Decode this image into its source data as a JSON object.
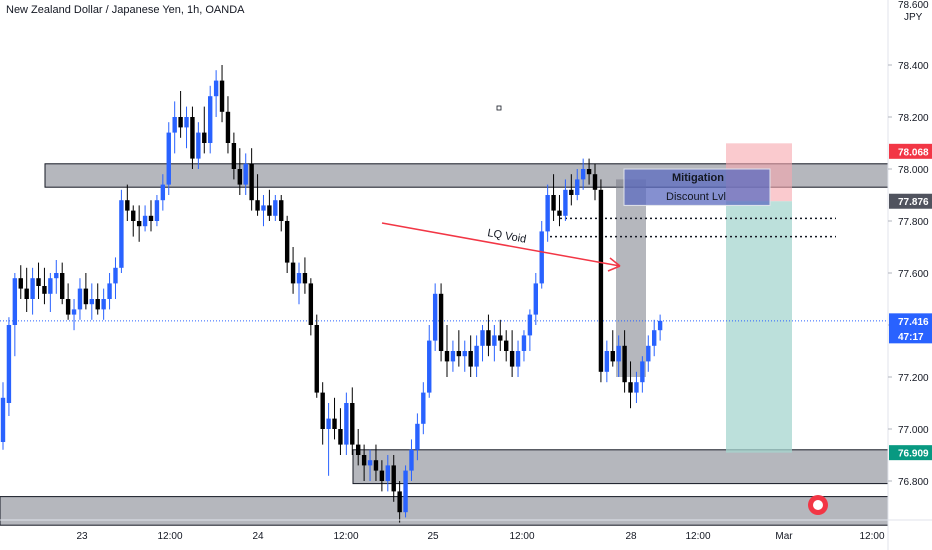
{
  "header": {
    "title": "New Zealand Dollar / Japanese Yen, 1h, OANDA"
  },
  "price_axis": {
    "currency": "JPY",
    "top_label": "78.600"
  },
  "watermark_icon": "tradingview-logo-icon",
  "colors": {
    "bull": "#2962ff",
    "bear": "#000000",
    "zone": "#787b86",
    "arrow": "#f23645",
    "stop": "#f7a6ae",
    "target": "#a5d6cf",
    "price_tag_blue": "#2962ff",
    "price_tag_red": "#f23645",
    "price_tag_green": "#089981",
    "price_tag_dark": "#50535e"
  },
  "annotations": {
    "lq_void": "LQ Void",
    "mitigation": "Mitigation",
    "discount": "Discount Lvl"
  },
  "price_tags": {
    "stop": "78.068",
    "entry": "77.876",
    "last": "77.416",
    "countdown": "47:17",
    "target": "76.909"
  },
  "chart_data": {
    "type": "candlestick",
    "title": "New Zealand Dollar / Japanese Yen, 1h, OANDA",
    "ylabel": "JPY",
    "ylim": [
      76.65,
      78.65
    ],
    "y_ticks": [
      "78.400",
      "78.200",
      "78.000",
      "77.800",
      "77.600",
      "77.400",
      "77.200",
      "77.000",
      "76.800"
    ],
    "x_ticks": [
      "23",
      "12:00",
      "24",
      "12:00",
      "25",
      "12:00",
      "28",
      "12:00",
      "Mar",
      "12:00"
    ],
    "grid": false,
    "zones": [
      {
        "y1": 78.02,
        "y2": 77.93
      },
      {
        "y1": 76.92,
        "y2": 76.79
      },
      {
        "y1": 76.74,
        "y2": 76.63
      }
    ],
    "position": {
      "type": "short",
      "stop": 78.068,
      "entry": 77.876,
      "target": 76.909
    },
    "last_price": 77.416,
    "candles": [
      [
        76.95,
        77.18,
        76.92,
        77.12
      ],
      [
        77.1,
        77.43,
        77.05,
        77.4
      ],
      [
        77.4,
        77.6,
        77.28,
        77.58
      ],
      [
        77.58,
        77.63,
        77.5,
        77.54
      ],
      [
        77.54,
        77.62,
        77.45,
        77.5
      ],
      [
        77.5,
        77.62,
        77.44,
        77.58
      ],
      [
        77.58,
        77.64,
        77.5,
        77.55
      ],
      [
        77.55,
        77.62,
        77.48,
        77.52
      ],
      [
        77.52,
        77.6,
        77.45,
        77.58
      ],
      [
        77.58,
        77.65,
        77.52,
        77.6
      ],
      [
        77.6,
        77.64,
        77.48,
        77.5
      ],
      [
        77.5,
        77.56,
        77.42,
        77.44
      ],
      [
        77.44,
        77.5,
        77.38,
        77.46
      ],
      [
        77.46,
        77.58,
        77.42,
        77.54
      ],
      [
        77.54,
        77.6,
        77.46,
        77.48
      ],
      [
        77.48,
        77.56,
        77.42,
        77.5
      ],
      [
        77.5,
        77.56,
        77.44,
        77.46
      ],
      [
        77.46,
        77.54,
        77.42,
        77.5
      ],
      [
        77.5,
        77.6,
        77.46,
        77.56
      ],
      [
        77.56,
        77.66,
        77.5,
        77.62
      ],
      [
        77.62,
        77.92,
        77.6,
        77.88
      ],
      [
        77.88,
        77.94,
        77.8,
        77.84
      ],
      [
        77.84,
        77.86,
        77.74,
        77.8
      ],
      [
        77.8,
        77.86,
        77.72,
        77.78
      ],
      [
        77.78,
        77.86,
        77.76,
        77.82
      ],
      [
        77.82,
        77.88,
        77.76,
        77.8
      ],
      [
        77.8,
        77.9,
        77.78,
        77.88
      ],
      [
        77.88,
        77.98,
        77.84,
        77.94
      ],
      [
        77.94,
        78.18,
        77.9,
        78.14
      ],
      [
        78.14,
        78.26,
        78.06,
        78.2
      ],
      [
        78.2,
        78.3,
        78.12,
        78.16
      ],
      [
        78.16,
        78.24,
        78.08,
        78.2
      ],
      [
        78.2,
        78.24,
        78.0,
        78.04
      ],
      [
        78.04,
        78.18,
        78.0,
        78.14
      ],
      [
        78.14,
        78.24,
        78.06,
        78.1
      ],
      [
        78.1,
        78.32,
        78.06,
        78.28
      ],
      [
        78.28,
        78.38,
        78.2,
        78.34
      ],
      [
        78.34,
        78.4,
        78.18,
        78.22
      ],
      [
        78.22,
        78.28,
        78.06,
        78.1
      ],
      [
        78.1,
        78.14,
        77.96,
        78.0
      ],
      [
        78.0,
        78.08,
        77.9,
        77.94
      ],
      [
        77.94,
        78.06,
        77.9,
        78.02
      ],
      [
        78.02,
        78.08,
        77.84,
        77.88
      ],
      [
        77.88,
        77.98,
        77.82,
        77.84
      ],
      [
        77.84,
        77.9,
        77.78,
        77.86
      ],
      [
        77.86,
        77.92,
        77.8,
        77.82
      ],
      [
        77.82,
        77.9,
        77.8,
        77.88
      ],
      [
        77.88,
        77.9,
        77.76,
        77.8
      ],
      [
        77.8,
        77.82,
        77.6,
        77.64
      ],
      [
        77.64,
        77.7,
        77.52,
        77.56
      ],
      [
        77.56,
        77.64,
        77.48,
        77.6
      ],
      [
        77.6,
        77.66,
        77.52,
        77.56
      ],
      [
        77.56,
        77.58,
        77.36,
        77.4
      ],
      [
        77.4,
        77.44,
        77.12,
        77.14
      ],
      [
        77.14,
        77.18,
        76.94,
        77.0
      ],
      [
        77.0,
        77.1,
        76.82,
        77.04
      ],
      [
        77.04,
        77.12,
        76.96,
        77.0
      ],
      [
        77.0,
        77.08,
        76.9,
        76.94
      ],
      [
        76.94,
        77.14,
        76.9,
        77.1
      ],
      [
        77.1,
        77.16,
        76.9,
        76.94
      ],
      [
        76.94,
        77.0,
        76.86,
        76.9
      ],
      [
        76.9,
        76.94,
        76.8,
        76.86
      ],
      [
        76.86,
        76.92,
        76.8,
        76.88
      ],
      [
        76.88,
        76.94,
        76.8,
        76.84
      ],
      [
        76.84,
        76.88,
        76.76,
        76.8
      ],
      [
        76.8,
        76.9,
        76.76,
        76.86
      ],
      [
        76.86,
        76.9,
        76.72,
        76.76
      ],
      [
        76.76,
        76.8,
        76.64,
        76.68
      ],
      [
        76.68,
        76.86,
        76.66,
        76.84
      ],
      [
        76.84,
        76.96,
        76.8,
        76.92
      ],
      [
        76.92,
        77.06,
        76.88,
        77.02
      ],
      [
        77.02,
        77.18,
        76.98,
        77.14
      ],
      [
        77.14,
        77.4,
        77.12,
        77.34
      ],
      [
        77.34,
        77.56,
        77.3,
        77.52
      ],
      [
        77.52,
        77.56,
        77.26,
        77.3
      ],
      [
        77.3,
        77.4,
        77.2,
        77.26
      ],
      [
        77.26,
        77.34,
        77.22,
        77.3
      ],
      [
        77.3,
        77.38,
        77.24,
        77.28
      ],
      [
        77.28,
        77.34,
        77.22,
        77.3
      ],
      [
        77.3,
        77.36,
        77.2,
        77.24
      ],
      [
        77.24,
        77.36,
        77.2,
        77.32
      ],
      [
        77.32,
        77.4,
        77.26,
        77.38
      ],
      [
        77.38,
        77.44,
        77.28,
        77.32
      ],
      [
        77.32,
        77.4,
        77.26,
        77.36
      ],
      [
        77.36,
        77.42,
        77.3,
        77.34
      ],
      [
        77.34,
        77.38,
        77.26,
        77.3
      ],
      [
        77.3,
        77.38,
        77.2,
        77.24
      ],
      [
        77.24,
        77.34,
        77.2,
        77.3
      ],
      [
        77.3,
        77.38,
        77.26,
        77.36
      ],
      [
        77.36,
        77.46,
        77.3,
        77.44
      ],
      [
        77.44,
        77.6,
        77.4,
        77.56
      ],
      [
        77.56,
        77.8,
        77.54,
        77.76
      ],
      [
        77.76,
        77.94,
        77.72,
        77.9
      ],
      [
        77.9,
        77.98,
        77.8,
        77.84
      ],
      [
        77.84,
        77.9,
        77.78,
        77.82
      ],
      [
        77.82,
        77.96,
        77.8,
        77.92
      ],
      [
        77.92,
        77.98,
        77.86,
        77.9
      ],
      [
        77.9,
        78.0,
        77.88,
        77.96
      ],
      [
        77.96,
        78.04,
        77.92,
        78.0
      ],
      [
        78.0,
        78.04,
        77.94,
        77.98
      ],
      [
        77.98,
        78.02,
        77.88,
        77.92
      ],
      [
        77.92,
        77.96,
        77.18,
        77.22
      ],
      [
        77.22,
        77.34,
        77.18,
        77.3
      ],
      [
        77.3,
        77.38,
        77.24,
        77.26
      ],
      [
        77.26,
        77.36,
        77.2,
        77.32
      ],
      [
        77.32,
        77.38,
        77.14,
        77.18
      ],
      [
        77.18,
        77.26,
        77.08,
        77.14
      ],
      [
        77.14,
        77.22,
        77.1,
        77.18
      ],
      [
        77.18,
        77.28,
        77.14,
        77.26
      ],
      [
        77.26,
        77.36,
        77.22,
        77.32
      ],
      [
        77.32,
        77.42,
        77.28,
        77.38
      ],
      [
        77.38,
        77.44,
        77.34,
        77.416
      ]
    ]
  }
}
